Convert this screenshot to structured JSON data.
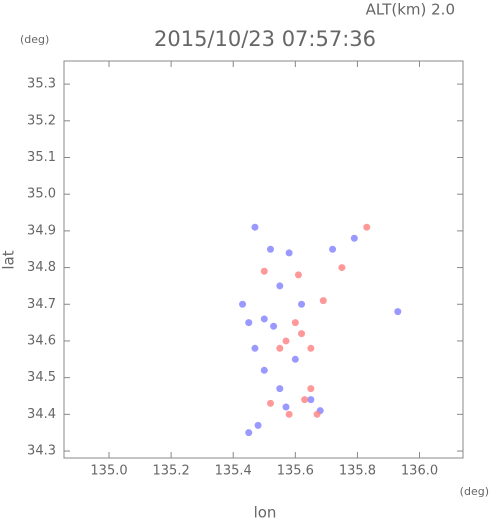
{
  "chart_data": {
    "type": "scatter",
    "title": "2015/10/23 07:57:36",
    "subtitle": "ALT(km) 2.0",
    "y_unit": "(deg)",
    "x_unit": "(deg)",
    "x_label": "lon",
    "y_label": "lat",
    "xlim": [
      134.855,
      136.14
    ],
    "ylim": [
      34.281,
      35.363
    ],
    "xticks": [
      {
        "value": 135,
        "label": "135.0"
      },
      135.2,
      135.4,
      135.6,
      135.8,
      {
        "value": 136,
        "label": "136.0"
      }
    ],
    "yticks": [
      34.3,
      34.4,
      34.5,
      34.6,
      34.7,
      34.8,
      34.9,
      {
        "value": 35,
        "label": "35.0"
      },
      35.1,
      35.2,
      35.3
    ],
    "series": [
      {
        "color": "#8080ff",
        "x": [
          135.47,
          135.52,
          135.58,
          135.72,
          135.79,
          135.43,
          135.45,
          135.5,
          135.53,
          135.47,
          135.5,
          135.55,
          135.57,
          135.65,
          135.68,
          135.48,
          135.45,
          135.6,
          135.62,
          135.55,
          135.93
        ],
        "y": [
          34.91,
          34.85,
          34.84,
          34.85,
          34.88,
          34.7,
          34.65,
          34.66,
          34.64,
          34.58,
          34.52,
          34.47,
          34.42,
          34.44,
          34.41,
          34.37,
          34.35,
          34.55,
          34.7,
          34.75,
          34.68
        ]
      },
      {
        "color": "#ff8080",
        "x": [
          135.83,
          135.75,
          135.5,
          135.61,
          135.6,
          135.62,
          135.57,
          135.65,
          135.55,
          135.65,
          135.52,
          135.58,
          135.63,
          135.67,
          135.69
        ],
        "y": [
          34.91,
          34.8,
          34.79,
          34.78,
          34.65,
          34.62,
          34.6,
          34.58,
          34.58,
          34.47,
          34.43,
          34.4,
          34.44,
          34.4,
          34.71
        ]
      }
    ]
  }
}
